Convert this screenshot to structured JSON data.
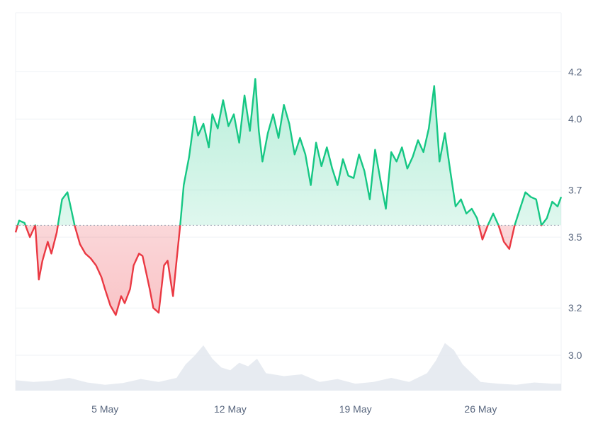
{
  "chart_data": {
    "type": "area",
    "baseline": 3.55,
    "ylim": [
      2.85,
      4.45
    ],
    "xlim": [
      0,
      30.5
    ],
    "y_ticks": [
      {
        "value": 3.0,
        "label": "3.0"
      },
      {
        "value": 3.2,
        "label": "3.2"
      },
      {
        "value": 3.5,
        "label": "3.5"
      },
      {
        "value": 3.7,
        "label": "3.7"
      },
      {
        "value": 4.0,
        "label": "4.0"
      },
      {
        "value": 4.2,
        "label": "4.2"
      }
    ],
    "x_ticks": [
      {
        "value": 5,
        "label": "5 May"
      },
      {
        "value": 12,
        "label": "12 May"
      },
      {
        "value": 19,
        "label": "19 May"
      },
      {
        "value": 26,
        "label": "26 May"
      }
    ],
    "colors": {
      "up": "#16c784",
      "down": "#ea3943",
      "up_fill": "#16c784",
      "down_fill": "#ea3943",
      "volume": "#e3e7ee",
      "grid": "#eff2f5",
      "baseline": "#9aa4b2"
    },
    "price": {
      "x": [
        0,
        0.2,
        0.5,
        0.8,
        1.1,
        1.3,
        1.5,
        1.8,
        2.0,
        2.3,
        2.6,
        2.9,
        3.1,
        3.3,
        3.6,
        3.9,
        4.2,
        4.5,
        4.8,
        5.0,
        5.3,
        5.6,
        5.9,
        6.1,
        6.4,
        6.6,
        6.9,
        7.1,
        7.3,
        7.5,
        7.7,
        8.0,
        8.3,
        8.5,
        8.7,
        8.8,
        9.0,
        9.2,
        9.4,
        9.7,
        10.0,
        10.2,
        10.5,
        10.8,
        11.0,
        11.3,
        11.6,
        11.9,
        12.2,
        12.5,
        12.8,
        13.1,
        13.4,
        13.6,
        13.8,
        14.1,
        14.4,
        14.7,
        15.0,
        15.3,
        15.6,
        15.9,
        16.2,
        16.5,
        16.8,
        17.1,
        17.4,
        17.7,
        18.0,
        18.3,
        18.6,
        18.9,
        19.2,
        19.5,
        19.8,
        20.1,
        20.4,
        20.7,
        21.0,
        21.3,
        21.6,
        21.9,
        22.2,
        22.5,
        22.8,
        23.1,
        23.4,
        23.7,
        24.0,
        24.3,
        24.6,
        24.9,
        25.2,
        25.5,
        25.8,
        26.1,
        26.4,
        26.7,
        27.0,
        27.3,
        27.6,
        27.9,
        28.2,
        28.5,
        28.8,
        29.1,
        29.4,
        29.7,
        30.0,
        30.3,
        30.5
      ],
      "y": [
        3.52,
        3.57,
        3.56,
        3.5,
        3.55,
        3.32,
        3.4,
        3.48,
        3.43,
        3.52,
        3.66,
        3.69,
        3.62,
        3.55,
        3.47,
        3.43,
        3.41,
        3.38,
        3.33,
        3.28,
        3.21,
        3.17,
        3.25,
        3.22,
        3.28,
        3.38,
        3.43,
        3.42,
        3.35,
        3.28,
        3.2,
        3.18,
        3.38,
        3.4,
        3.3,
        3.25,
        3.4,
        3.55,
        3.72,
        3.84,
        4.01,
        3.93,
        3.98,
        3.88,
        4.02,
        3.96,
        4.08,
        3.97,
        4.02,
        3.9,
        4.1,
        3.95,
        4.17,
        3.95,
        3.82,
        3.94,
        4.02,
        3.92,
        4.06,
        3.98,
        3.85,
        3.92,
        3.85,
        3.72,
        3.9,
        3.8,
        3.88,
        3.79,
        3.72,
        3.83,
        3.76,
        3.75,
        3.85,
        3.78,
        3.66,
        3.87,
        3.74,
        3.62,
        3.86,
        3.82,
        3.88,
        3.79,
        3.84,
        3.91,
        3.86,
        3.96,
        4.14,
        3.82,
        3.94,
        3.78,
        3.63,
        3.66,
        3.6,
        3.62,
        3.58,
        3.49,
        3.55,
        3.6,
        3.55,
        3.48,
        3.45,
        3.55,
        3.62,
        3.69,
        3.67,
        3.66,
        3.55,
        3.58,
        3.65,
        3.63,
        3.67
      ]
    },
    "volume": {
      "x": [
        0,
        1,
        2,
        3,
        4,
        5,
        6,
        7,
        8,
        9,
        9.5,
        10,
        10.5,
        11,
        11.5,
        12,
        12.5,
        13,
        13.5,
        14,
        15,
        16,
        17,
        18,
        19,
        20,
        21,
        22,
        23,
        23.5,
        24,
        24.5,
        25,
        26,
        27,
        28,
        29,
        30,
        30.5
      ],
      "v": [
        0.18,
        0.15,
        0.17,
        0.22,
        0.14,
        0.1,
        0.13,
        0.2,
        0.15,
        0.22,
        0.45,
        0.6,
        0.78,
        0.55,
        0.4,
        0.35,
        0.48,
        0.42,
        0.55,
        0.3,
        0.25,
        0.28,
        0.15,
        0.2,
        0.12,
        0.15,
        0.22,
        0.15,
        0.3,
        0.52,
        0.82,
        0.7,
        0.45,
        0.15,
        0.12,
        0.1,
        0.14,
        0.12,
        0.12
      ]
    }
  }
}
